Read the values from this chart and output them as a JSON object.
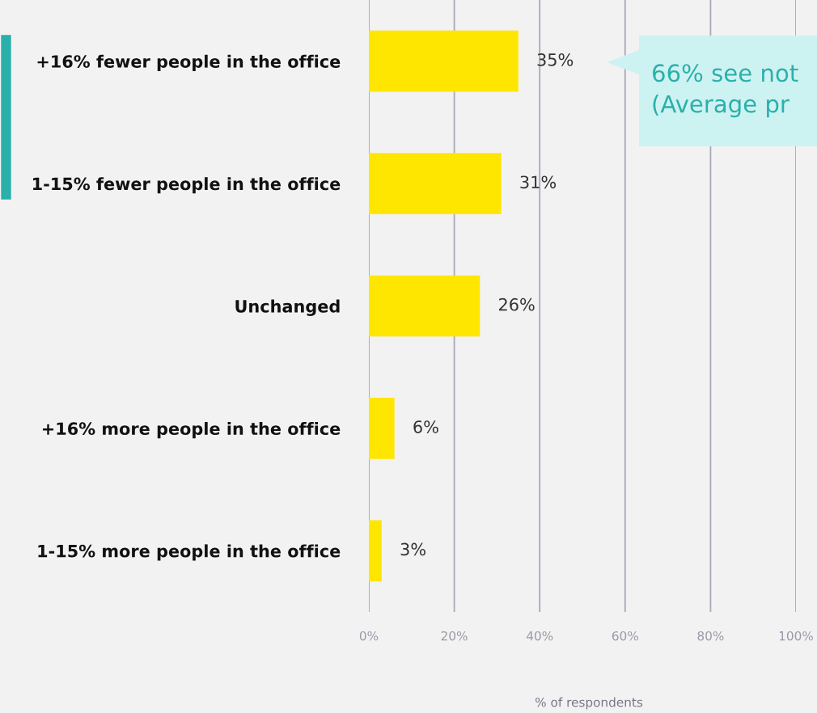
{
  "chart_data": {
    "type": "bar",
    "orientation": "horizontal",
    "categories": [
      "+16% fewer people in the office",
      "1-15% fewer people in the office",
      "Unchanged",
      "+16% more people in the office",
      "1-15% more people in the office"
    ],
    "values": [
      35,
      31,
      26,
      6,
      3
    ],
    "color": "#ffe600",
    "value_labels": [
      "35%",
      "31%",
      "26%",
      "6%",
      "3%"
    ],
    "xlim": [
      0,
      100
    ],
    "xticks": [
      {
        "value": 0,
        "label": "0%"
      },
      {
        "value": 20,
        "label": "20%"
      },
      {
        "value": 40,
        "label": "40%"
      },
      {
        "value": 60,
        "label": "60%"
      },
      {
        "value": 80,
        "label": "80%"
      },
      {
        "value": 100,
        "label": "100%"
      }
    ],
    "xlabel": "% of respondents",
    "grid": "x",
    "annotations": [
      "66% see not\n(Average pr"
    ]
  }
}
